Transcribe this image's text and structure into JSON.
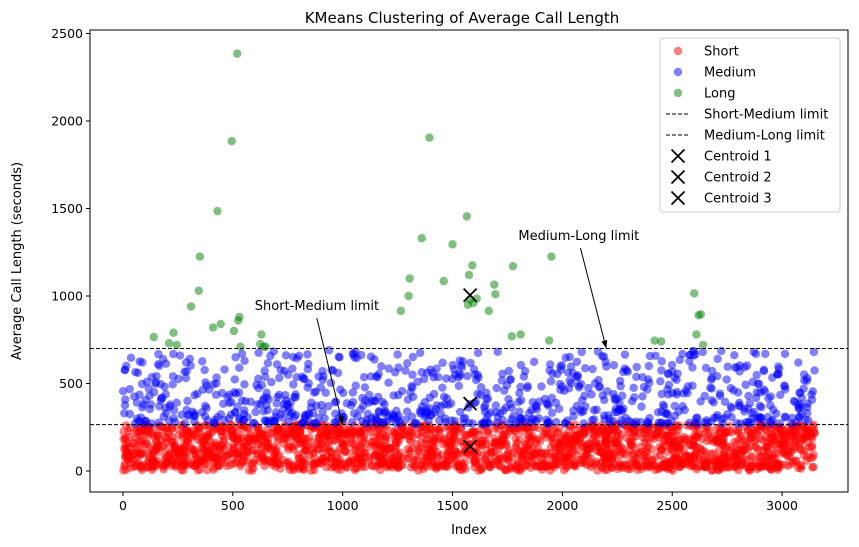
{
  "chart_data": {
    "type": "scatter",
    "title": "KMeans Clustering of Average Call Length",
    "xlabel": "Index",
    "ylabel": "Average Call Length (seconds)",
    "xlim": [
      -150,
      3300
    ],
    "ylim": [
      -120,
      2520
    ],
    "xticks": [
      0,
      500,
      1000,
      1500,
      2000,
      2500,
      3000
    ],
    "yticks": [
      0,
      500,
      1000,
      1500,
      2000,
      2500
    ],
    "grid": false,
    "legend_position": "top-right",
    "colors": {
      "Short": "#ff0000",
      "Medium": "#0000ff",
      "Long": "#008000"
    },
    "series": [
      {
        "name": "Short",
        "x_range": [
          0,
          3150
        ],
        "y_range": [
          0,
          265
        ],
        "note_points": "dense band of ~2000 points"
      },
      {
        "name": "Medium",
        "x_range": [
          0,
          3150
        ],
        "y_range": [
          265,
          700
        ],
        "note_points": "~800 points"
      },
      {
        "name": "Long",
        "points": [
          [
            140,
            765
          ],
          [
            210,
            730
          ],
          [
            230,
            790
          ],
          [
            245,
            720
          ],
          [
            310,
            940
          ],
          [
            345,
            1030
          ],
          [
            350,
            1225
          ],
          [
            410,
            820
          ],
          [
            430,
            1485
          ],
          [
            445,
            840
          ],
          [
            495,
            1885
          ],
          [
            505,
            800
          ],
          [
            520,
            2385
          ],
          [
            525,
            860
          ],
          [
            530,
            880
          ],
          [
            535,
            710
          ],
          [
            625,
            725
          ],
          [
            630,
            780
          ],
          [
            640,
            710
          ],
          [
            650,
            710
          ],
          [
            1265,
            915
          ],
          [
            1300,
            1000
          ],
          [
            1305,
            1100
          ],
          [
            1360,
            1330
          ],
          [
            1395,
            1905
          ],
          [
            1460,
            1085
          ],
          [
            1500,
            1295
          ],
          [
            1565,
            1455
          ],
          [
            1570,
            950
          ],
          [
            1575,
            1120
          ],
          [
            1580,
            980
          ],
          [
            1590,
            1175
          ],
          [
            1595,
            960
          ],
          [
            1610,
            985
          ],
          [
            1665,
            915
          ],
          [
            1690,
            1065
          ],
          [
            1695,
            1010
          ],
          [
            1770,
            770
          ],
          [
            1775,
            1170
          ],
          [
            1810,
            780
          ],
          [
            1940,
            745
          ],
          [
            1950,
            1225
          ],
          [
            2420,
            745
          ],
          [
            2450,
            740
          ],
          [
            2600,
            1015
          ],
          [
            2610,
            780
          ],
          [
            2620,
            890
          ],
          [
            2630,
            895
          ],
          [
            2640,
            720
          ]
        ]
      }
    ],
    "limits": [
      {
        "name": "Short-Medium limit",
        "y": 265
      },
      {
        "name": "Medium-Long limit",
        "y": 700
      }
    ],
    "centroids": [
      {
        "name": "Centroid 1",
        "x": 1580,
        "y": 1005
      },
      {
        "name": "Centroid 2",
        "x": 1580,
        "y": 385
      },
      {
        "name": "Centroid 3",
        "x": 1580,
        "y": 140
      }
    ],
    "annotations": [
      {
        "text": "Short-Medium limit",
        "text_x": 600,
        "text_y": 920,
        "arrow_x": 1000,
        "arrow_y": 265
      },
      {
        "text": "Medium-Long limit",
        "text_x": 1800,
        "text_y": 1320,
        "arrow_x": 2200,
        "arrow_y": 700
      }
    ],
    "legend": [
      "Short",
      "Medium",
      "Long",
      "Short-Medium limit",
      "Medium-Long limit",
      "Centroid 1",
      "Centroid 2",
      "Centroid 3"
    ]
  }
}
